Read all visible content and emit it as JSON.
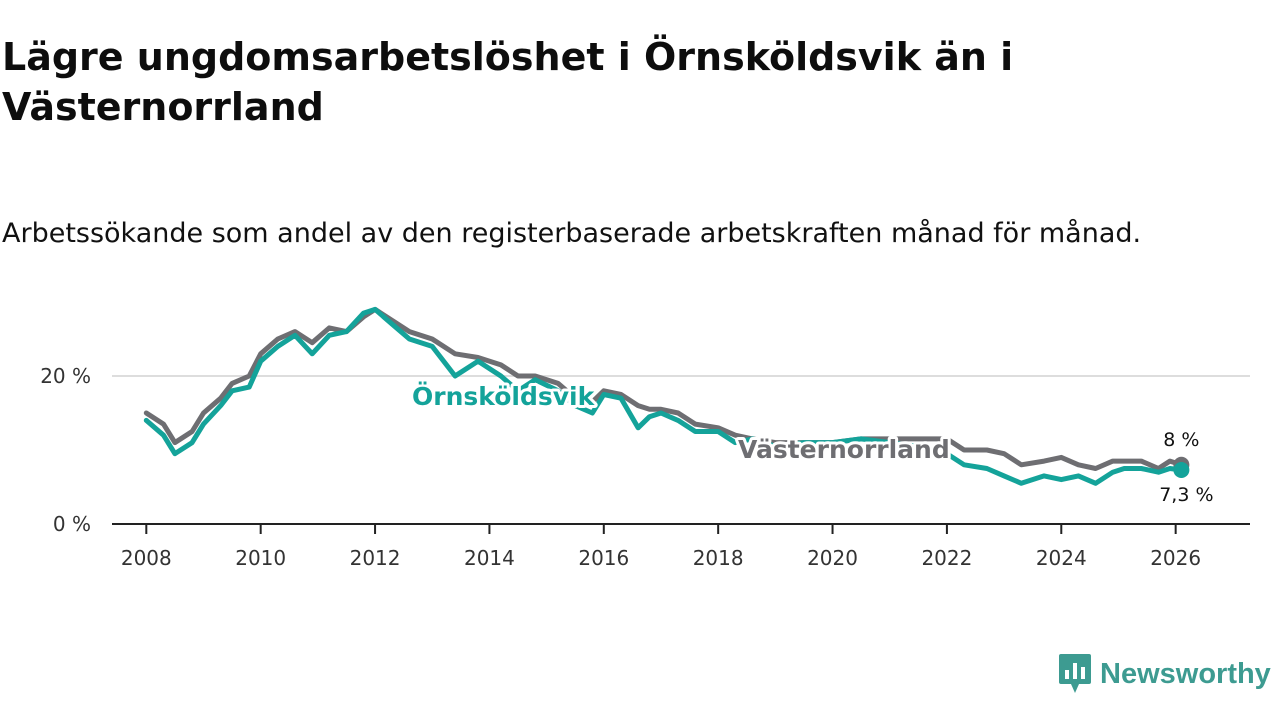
{
  "title": "Lägre ungdomsarbetslöshet i Örnsköldsvik än i Västernorrland",
  "subtitle": "Arbetssökande som andel av den registerbaserade arbetskraften månad för månad.",
  "brand": {
    "name": "Newsworthy",
    "icon": "newsworthy-logo-icon"
  },
  "colors": {
    "ornskoldsvik": "#14a39a",
    "vasternorrland": "#6e6e72",
    "gridline": "#dddddd",
    "axis": "#222222"
  },
  "chart_data": {
    "type": "line",
    "title": "Lägre ungdomsarbetslöshet i Örnsköldsvik än i Västernorrland",
    "xlabel": "",
    "ylabel": "",
    "xlim": [
      2007.4,
      2027.3
    ],
    "ylim": [
      0,
      30
    ],
    "grid": "horizontal",
    "x_ticks": [
      2008,
      2010,
      2012,
      2014,
      2016,
      2018,
      2020,
      2022,
      2024,
      2026
    ],
    "y_ticks": [
      0,
      20
    ],
    "y_tick_labels": [
      "0 %",
      "20 %"
    ],
    "series": [
      {
        "name": "Västernorrland",
        "label": "Västernorrland",
        "color": "#6e6e72",
        "end_label": "8 %",
        "points": [
          [
            2008.0,
            15.0
          ],
          [
            2008.3,
            13.5
          ],
          [
            2008.5,
            11.0
          ],
          [
            2008.8,
            12.5
          ],
          [
            2009.0,
            15.0
          ],
          [
            2009.3,
            17.0
          ],
          [
            2009.5,
            19.0
          ],
          [
            2009.8,
            20.0
          ],
          [
            2010.0,
            23.0
          ],
          [
            2010.3,
            25.0
          ],
          [
            2010.6,
            26.0
          ],
          [
            2010.9,
            24.5
          ],
          [
            2011.2,
            26.5
          ],
          [
            2011.5,
            26.0
          ],
          [
            2011.8,
            28.0
          ],
          [
            2012.0,
            29.0
          ],
          [
            2012.3,
            27.5
          ],
          [
            2012.6,
            26.0
          ],
          [
            2013.0,
            25.0
          ],
          [
            2013.4,
            23.0
          ],
          [
            2013.8,
            22.5
          ],
          [
            2014.2,
            21.5
          ],
          [
            2014.5,
            20.0
          ],
          [
            2014.8,
            20.0
          ],
          [
            2015.2,
            19.0
          ],
          [
            2015.5,
            17.0
          ],
          [
            2015.8,
            16.5
          ],
          [
            2016.0,
            18.0
          ],
          [
            2016.3,
            17.5
          ],
          [
            2016.6,
            16.0
          ],
          [
            2016.8,
            15.5
          ],
          [
            2017.0,
            15.5
          ],
          [
            2017.3,
            15.0
          ],
          [
            2017.6,
            13.5
          ],
          [
            2018.0,
            13.0
          ],
          [
            2018.3,
            12.0
          ],
          [
            2018.6,
            11.5
          ],
          [
            2019.0,
            11.0
          ],
          [
            2019.5,
            11.0
          ],
          [
            2020.0,
            11.0
          ],
          [
            2020.5,
            11.5
          ],
          [
            2021.0,
            11.5
          ],
          [
            2021.5,
            11.5
          ],
          [
            2022.0,
            11.5
          ],
          [
            2022.3,
            10.0
          ],
          [
            2022.7,
            10.0
          ],
          [
            2023.0,
            9.5
          ],
          [
            2023.3,
            8.0
          ],
          [
            2023.7,
            8.5
          ],
          [
            2024.0,
            9.0
          ],
          [
            2024.3,
            8.0
          ],
          [
            2024.6,
            7.5
          ],
          [
            2024.9,
            8.5
          ],
          [
            2025.1,
            8.5
          ],
          [
            2025.4,
            8.5
          ],
          [
            2025.7,
            7.5
          ],
          [
            2025.9,
            8.5
          ],
          [
            2026.1,
            8.0
          ]
        ]
      },
      {
        "name": "Örnsköldsvik",
        "label": "Örnsköldsvik",
        "color": "#14a39a",
        "end_label": "7,3 %",
        "points": [
          [
            2008.0,
            14.0
          ],
          [
            2008.3,
            12.0
          ],
          [
            2008.5,
            9.5
          ],
          [
            2008.8,
            11.0
          ],
          [
            2009.0,
            13.5
          ],
          [
            2009.3,
            16.0
          ],
          [
            2009.5,
            18.0
          ],
          [
            2009.8,
            18.5
          ],
          [
            2010.0,
            22.0
          ],
          [
            2010.3,
            24.0
          ],
          [
            2010.6,
            25.5
          ],
          [
            2010.9,
            23.0
          ],
          [
            2011.2,
            25.5
          ],
          [
            2011.5,
            26.0
          ],
          [
            2011.8,
            28.5
          ],
          [
            2012.0,
            29.0
          ],
          [
            2012.3,
            27.0
          ],
          [
            2012.6,
            25.0
          ],
          [
            2013.0,
            24.0
          ],
          [
            2013.4,
            20.0
          ],
          [
            2013.8,
            22.0
          ],
          [
            2014.2,
            20.0
          ],
          [
            2014.5,
            18.0
          ],
          [
            2014.8,
            19.5
          ],
          [
            2015.2,
            18.0
          ],
          [
            2015.5,
            16.0
          ],
          [
            2015.8,
            15.0
          ],
          [
            2016.0,
            17.5
          ],
          [
            2016.3,
            17.0
          ],
          [
            2016.6,
            13.0
          ],
          [
            2016.8,
            14.5
          ],
          [
            2017.0,
            15.0
          ],
          [
            2017.3,
            14.0
          ],
          [
            2017.6,
            12.5
          ],
          [
            2018.0,
            12.5
          ],
          [
            2018.3,
            11.0
          ],
          [
            2018.6,
            11.5
          ],
          [
            2019.0,
            10.5
          ],
          [
            2019.5,
            11.0
          ],
          [
            2020.0,
            11.0
          ],
          [
            2020.5,
            11.5
          ],
          [
            2021.0,
            11.0
          ],
          [
            2021.5,
            10.5
          ],
          [
            2022.0,
            9.5
          ],
          [
            2022.3,
            8.0
          ],
          [
            2022.7,
            7.5
          ],
          [
            2023.0,
            6.5
          ],
          [
            2023.3,
            5.5
          ],
          [
            2023.7,
            6.5
          ],
          [
            2024.0,
            6.0
          ],
          [
            2024.3,
            6.5
          ],
          [
            2024.6,
            5.5
          ],
          [
            2024.9,
            7.0
          ],
          [
            2025.1,
            7.5
          ],
          [
            2025.4,
            7.5
          ],
          [
            2025.7,
            7.0
          ],
          [
            2025.9,
            7.5
          ],
          [
            2026.1,
            7.3
          ]
        ]
      }
    ]
  }
}
